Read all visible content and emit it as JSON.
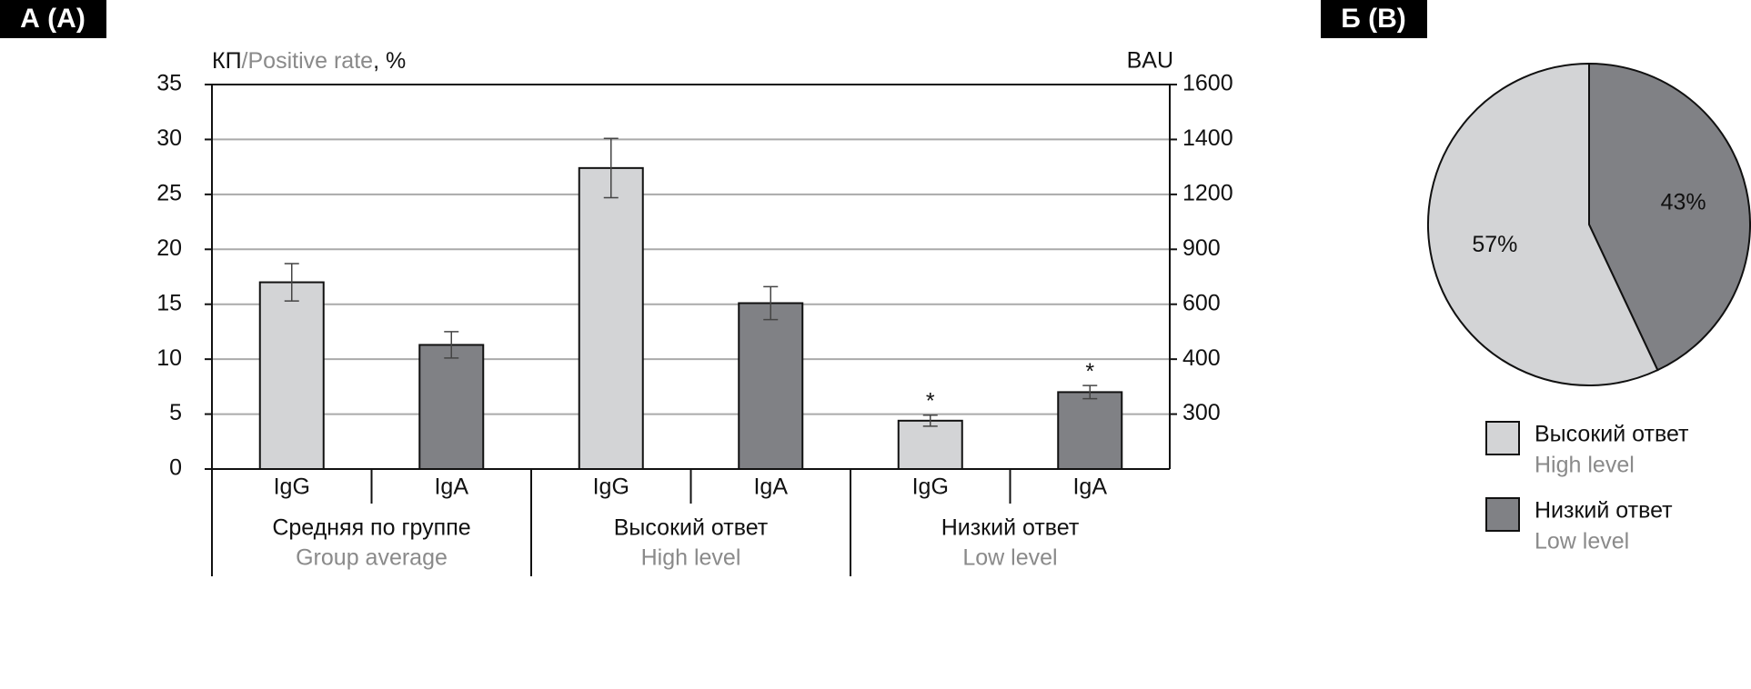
{
  "panels": [
    {
      "label": "А (А)"
    },
    {
      "label": "Б (B)"
    }
  ],
  "chart_data": [
    {
      "type": "bar",
      "ylabel": {
        "ru": "КП",
        "en": "/Positive rate",
        "unit": ", %"
      },
      "y2label": "BAU",
      "categories": [
        {
          "ru": "Средняя по группе",
          "en": "Group average"
        },
        {
          "ru": "Высокий ответ",
          "en": "High level"
        },
        {
          "ru": "Низкий ответ",
          "en": "Low level"
        }
      ],
      "series": [
        {
          "name": "IgG",
          "color": "#d3d4d6",
          "values": [
            17,
            27.4,
            4.4
          ],
          "errors": [
            1.7,
            2.7,
            0.5
          ],
          "annotations": [
            null,
            null,
            "*"
          ]
        },
        {
          "name": "IgA",
          "color": "#808185",
          "values": [
            11.3,
            15.1,
            7.0
          ],
          "errors": [
            1.2,
            1.5,
            0.6
          ],
          "annotations": [
            null,
            null,
            "*"
          ]
        }
      ],
      "ylim": [
        0,
        35
      ],
      "yticks": [
        0,
        5,
        10,
        15,
        20,
        25,
        30,
        35
      ],
      "y2ticks": [
        300,
        400,
        600,
        900,
        1200,
        1400,
        1600
      ],
      "grid": true
    },
    {
      "type": "pie",
      "categories": [
        {
          "ru": "Высокий ответ",
          "en": "High level"
        },
        {
          "ru": "Низкий ответ",
          "en": "Low level"
        }
      ],
      "values": [
        57,
        43
      ],
      "value_labels": [
        "57%",
        "43%"
      ],
      "colors": [
        "#d3d4d6",
        "#808185"
      ]
    }
  ]
}
